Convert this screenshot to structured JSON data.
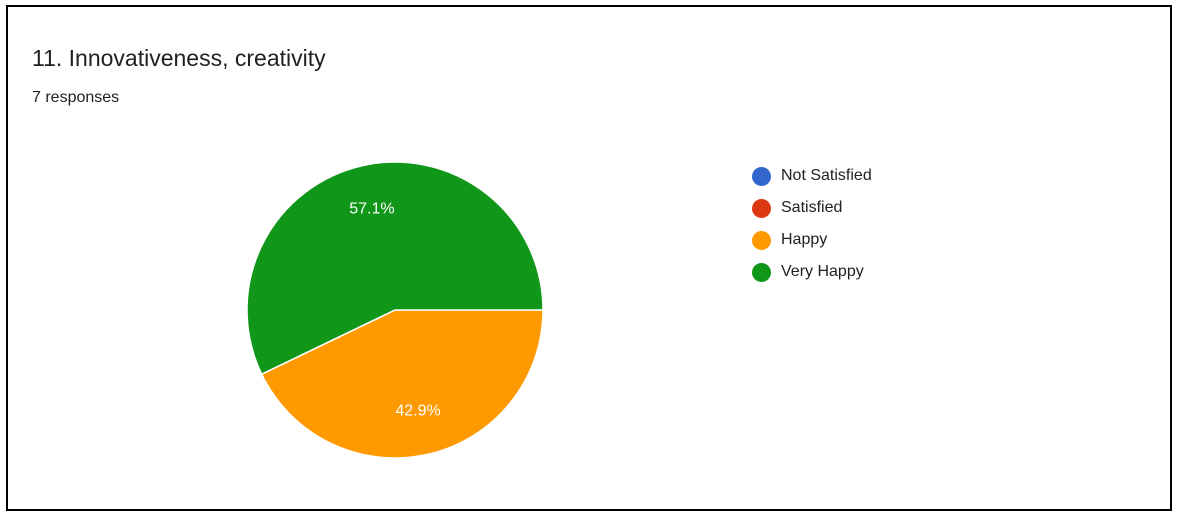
{
  "chart_data": {
    "type": "pie",
    "title": "11. Innovativeness, creativity",
    "subtitle": "7 responses",
    "categories": [
      "Not Satisfied",
      "Satisfied",
      "Happy",
      "Very Happy"
    ],
    "values": [
      0,
      0,
      3,
      4
    ],
    "data_labels": [
      "",
      "",
      "42.9%",
      "57.1%"
    ],
    "colors": [
      "#3366cc",
      "#dc3912",
      "#ff9900",
      "#109618"
    ],
    "label_color": "#ffffff",
    "legend_position": "right"
  }
}
